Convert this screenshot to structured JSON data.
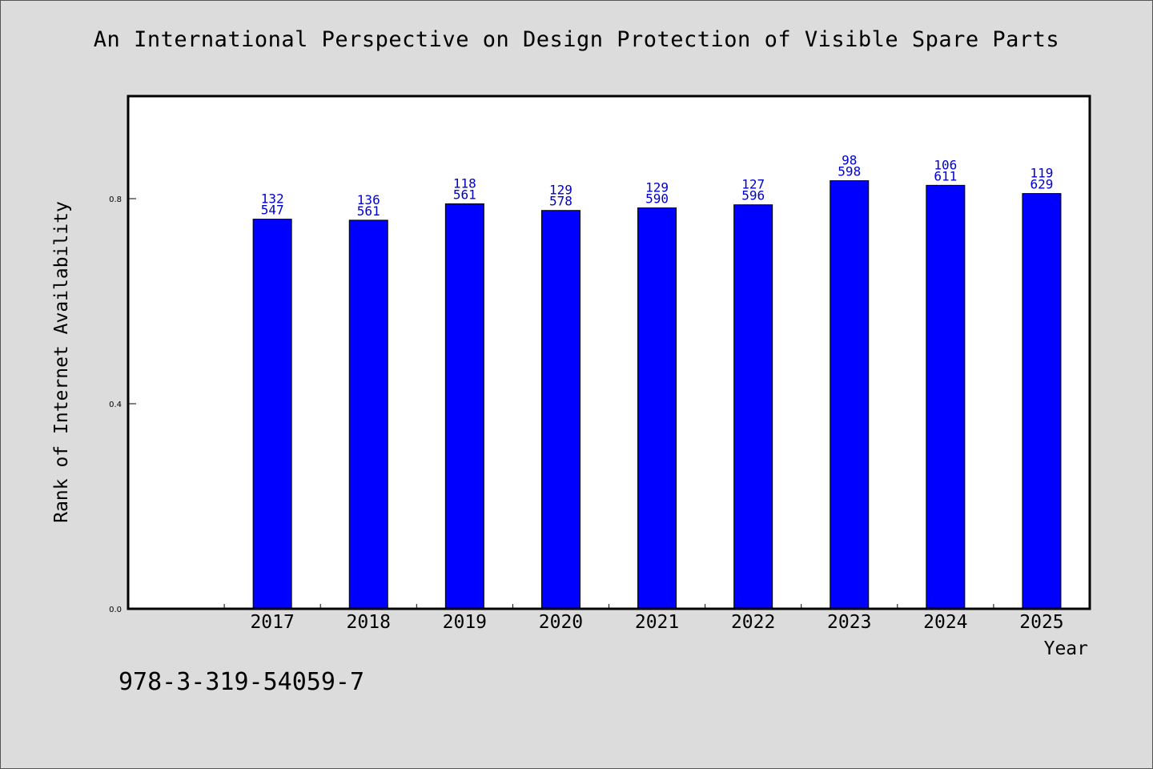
{
  "chart_data": {
    "type": "bar",
    "title": "An International Perspective on Design Protection of Visible Spare Parts",
    "xlabel": "Year",
    "ylabel": "Rank of Internet Availability",
    "categories": [
      "2017",
      "2018",
      "2019",
      "2020",
      "2021",
      "2022",
      "2023",
      "2024",
      "2025"
    ],
    "values": [
      0.76,
      0.758,
      0.79,
      0.777,
      0.782,
      0.788,
      0.835,
      0.826,
      0.81
    ],
    "value_labels": [
      [
        "132",
        "547"
      ],
      [
        "136",
        "561"
      ],
      [
        "118",
        "561"
      ],
      [
        "129",
        "578"
      ],
      [
        "129",
        "590"
      ],
      [
        "127",
        "596"
      ],
      [
        "98",
        "598"
      ],
      [
        "106",
        "611"
      ],
      [
        "119",
        "629"
      ]
    ],
    "yticks": [
      "0.0",
      "0.4",
      "0.8"
    ],
    "ylim": [
      0,
      1.0
    ],
    "bar_color": "#0000ff",
    "label_color": "#0000cc",
    "grid": false,
    "legend": "none"
  },
  "footer": {
    "isbn": "978-3-319-54059-7"
  }
}
